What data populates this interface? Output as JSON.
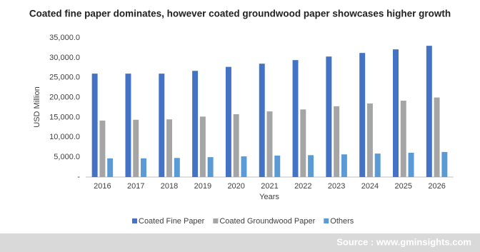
{
  "chart_data": {
    "type": "bar",
    "title": "Coated fine paper dominates, however coated groundwood paper showcases higher growth",
    "y_label": "USD Million",
    "x_label": "Years",
    "categories": [
      "2016",
      "2017",
      "2018",
      "2019",
      "2020",
      "2021",
      "2022",
      "2023",
      "2024",
      "2025",
      "2026"
    ],
    "series": [
      {
        "name": "Coated Fine Paper",
        "color": "#4472c4",
        "values": [
          26000,
          26000,
          26000,
          26700,
          27700,
          28500,
          29400,
          30300,
          31200,
          32100,
          33000
        ]
      },
      {
        "name": "Coated Groundwood Paper",
        "color": "#a5a5a5",
        "values": [
          14200,
          14400,
          14500,
          15200,
          15800,
          16500,
          17000,
          17800,
          18500,
          19200,
          20000
        ]
      },
      {
        "name": "Others",
        "color": "#5b9bd5",
        "values": [
          4700,
          4700,
          4800,
          5000,
          5200,
          5400,
          5500,
          5700,
          5900,
          6100,
          6300
        ]
      }
    ],
    "ylim": [
      0,
      35000
    ],
    "yticks": [
      {
        "value": 0,
        "label": "-"
      },
      {
        "value": 5000,
        "label": "5,000.0"
      },
      {
        "value": 10000,
        "label": "10,000.0"
      },
      {
        "value": 15000,
        "label": "15,000.0"
      },
      {
        "value": 20000,
        "label": "20,000.0"
      },
      {
        "value": 25000,
        "label": "25,000.0"
      },
      {
        "value": 30000,
        "label": "30,000.0"
      },
      {
        "value": 35000,
        "label": "35,000.0"
      }
    ],
    "grid": false,
    "legend": "bottom",
    "source": "Source : www.gminsights.com"
  }
}
